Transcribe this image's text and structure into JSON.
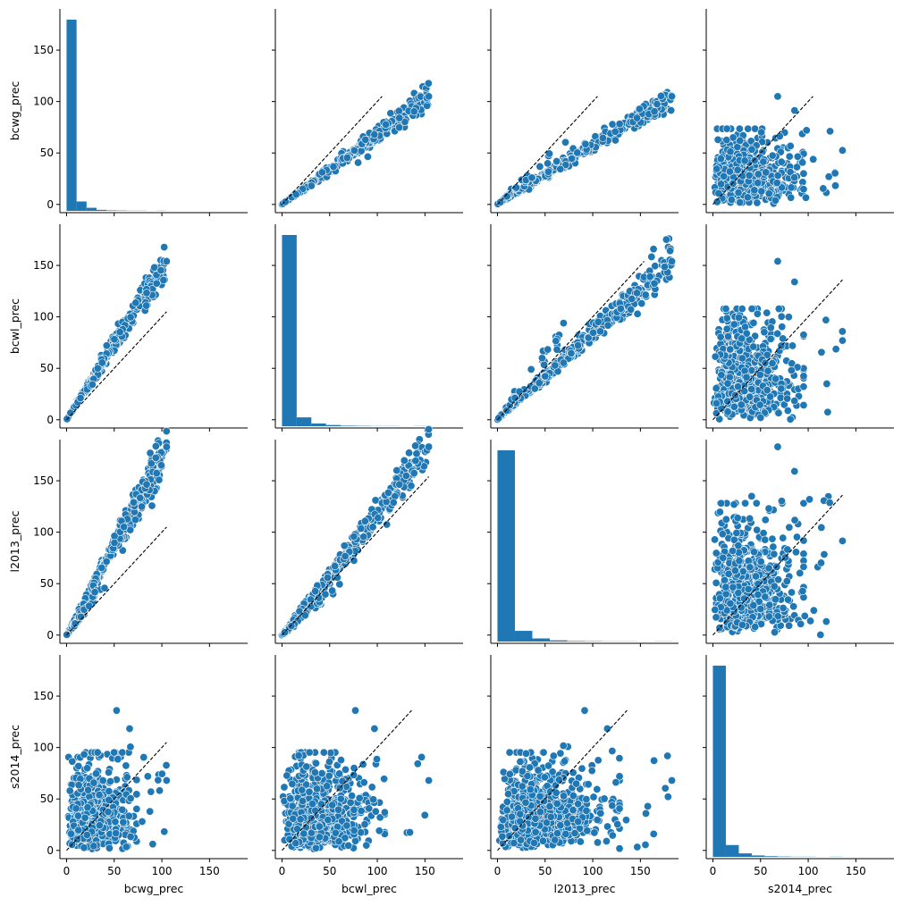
{
  "chart_data": {
    "type": "pairplot",
    "variables": [
      "bcwg_prec",
      "bcwl_prec",
      "l2013_prec",
      "s2014_prec"
    ],
    "xlim": [
      -7,
      190
    ],
    "ylim": [
      -8,
      190
    ],
    "ticks": [
      0,
      50,
      100,
      150
    ],
    "tick_labels": [
      "0",
      "50",
      "100",
      "150"
    ],
    "diagonal": {
      "type": "histogram",
      "bins": 10,
      "data_max": [
        105,
        154,
        183,
        136
      ],
      "counts": [
        [
          1120,
          55,
          18,
          6,
          3,
          2,
          1,
          1,
          0,
          1
        ],
        [
          1125,
          52,
          16,
          7,
          3,
          2,
          1,
          1,
          0,
          1
        ],
        [
          1110,
          62,
          18,
          7,
          3,
          2,
          1,
          1,
          0,
          1
        ],
        [
          1100,
          68,
          20,
          8,
          4,
          2,
          1,
          1,
          0,
          1
        ]
      ]
    },
    "offdiagonal": {
      "type": "scatter",
      "reference_line": "y = x (dashed)"
    },
    "colors": {
      "marker": "#1f77b4",
      "marker_edge": "#ffffff",
      "reference_line": "#000000",
      "axes": "#000000"
    }
  }
}
